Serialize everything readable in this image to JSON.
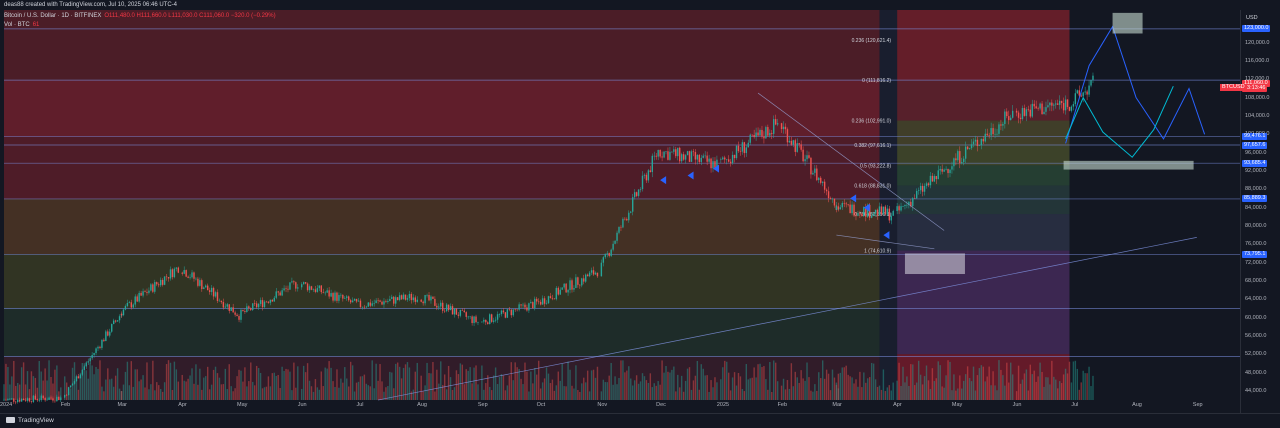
{
  "header": {
    "attribution": "deas88 created with TradingView.com, Jul 10, 2025 06:46 UTC-4"
  },
  "legend": {
    "symbol_line": "Bitcoin / U.S. Dollar · 1D · BITFINEX",
    "ohlc": "O111,480.0 H111,660.0 L111,030.0 C111,060.0 −320.0 (−0.29%)",
    "volume_label": "Vol · BTC",
    "volume_value": "61"
  },
  "axis": {
    "currency_button": "USD",
    "price_ticks": [
      "120,000.0",
      "116,000.0",
      "112,000.0",
      "108,000.0",
      "104,000.0",
      "100,000.0",
      "96,000.0",
      "92,000.0",
      "88,000.0",
      "84,000.0",
      "80,000.0",
      "76,000.0",
      "72,000.0",
      "68,000.0",
      "64,000.0",
      "60,000.0",
      "56,000.0",
      "52,000.0",
      "48,000.0",
      "44,000.0"
    ],
    "price_tags": [
      {
        "label": "123,000.0",
        "value": 123000,
        "color": "#2962ff"
      },
      {
        "label": "111,060.0",
        "value": 111060,
        "color": "#f23645"
      },
      {
        "label": "13:13:46",
        "value": 109900,
        "color": "#f23645"
      },
      {
        "label": "99,476.1",
        "value": 99476,
        "color": "#2962ff"
      },
      {
        "label": "97,657.6",
        "value": 97657,
        "color": "#2962ff"
      },
      {
        "label": "93,685.4",
        "value": 93685,
        "color": "#2962ff"
      },
      {
        "label": "85,889.3",
        "value": 85889,
        "color": "#2962ff"
      },
      {
        "label": "73,795.1",
        "value": 73795,
        "color": "#2962ff"
      }
    ],
    "ticker_tag": "BTCUSD",
    "time_ticks": [
      "2024",
      "Feb",
      "Mar",
      "Apr",
      "May",
      "Jun",
      "Jul",
      "Aug",
      "Sep",
      "Oct",
      "Nov",
      "Dec",
      "2025",
      "Feb",
      "Mar",
      "Apr",
      "May",
      "Jun",
      "Jul",
      "Aug",
      "Sep"
    ]
  },
  "fib": [
    {
      "label": "0.236 (120,621.4)",
      "value": 120621
    },
    {
      "label": "0 (111,816.2)",
      "value": 111816
    },
    {
      "label": "0.236 (102,991.0)",
      "value": 102991
    },
    {
      "label": "0.382 (97,616.1)",
      "value": 97616
    },
    {
      "label": "0.5 (93,222.8)",
      "value": 93222
    },
    {
      "label": "0.618 (88,831.0)",
      "value": 88831
    },
    {
      "label": "0.786 (82,596.1)",
      "value": 82596
    },
    {
      "label": "1 (74,610.9)",
      "value": 74610
    }
  ],
  "footer": {
    "brand": "TradingView"
  },
  "colors": {
    "bg": "#131722",
    "up": "#26a69a",
    "down": "#ef5350",
    "fibline": "#b2b5be",
    "blue": "#2962ff",
    "cyan": "#00bcd4"
  },
  "chart_data": {
    "type": "candlestick",
    "x_range": [
      "2024-01-01",
      "2025-09-20"
    ],
    "ylim": [
      42000,
      128000
    ],
    "monthly_close_approx": [
      {
        "month": "2024-01",
        "close": 42500
      },
      {
        "month": "2024-02",
        "close": 61000
      },
      {
        "month": "2024-03",
        "close": 71000
      },
      {
        "month": "2024-04",
        "close": 60500
      },
      {
        "month": "2024-05",
        "close": 67500
      },
      {
        "month": "2024-06",
        "close": 62700
      },
      {
        "month": "2024-07",
        "close": 64600
      },
      {
        "month": "2024-08",
        "close": 59000
      },
      {
        "month": "2024-09",
        "close": 63300
      },
      {
        "month": "2024-10",
        "close": 70200
      },
      {
        "month": "2024-11",
        "close": 96400
      },
      {
        "month": "2024-12",
        "close": 93400
      },
      {
        "month": "2025-01",
        "close": 102400
      },
      {
        "month": "2025-02",
        "close": 84300
      },
      {
        "month": "2025-03",
        "close": 82500
      },
      {
        "month": "2025-04",
        "close": 94200
      },
      {
        "month": "2025-05",
        "close": 104600
      },
      {
        "month": "2025-06",
        "close": 107100
      },
      {
        "month": "2025-07",
        "close": 111060
      }
    ]
  }
}
